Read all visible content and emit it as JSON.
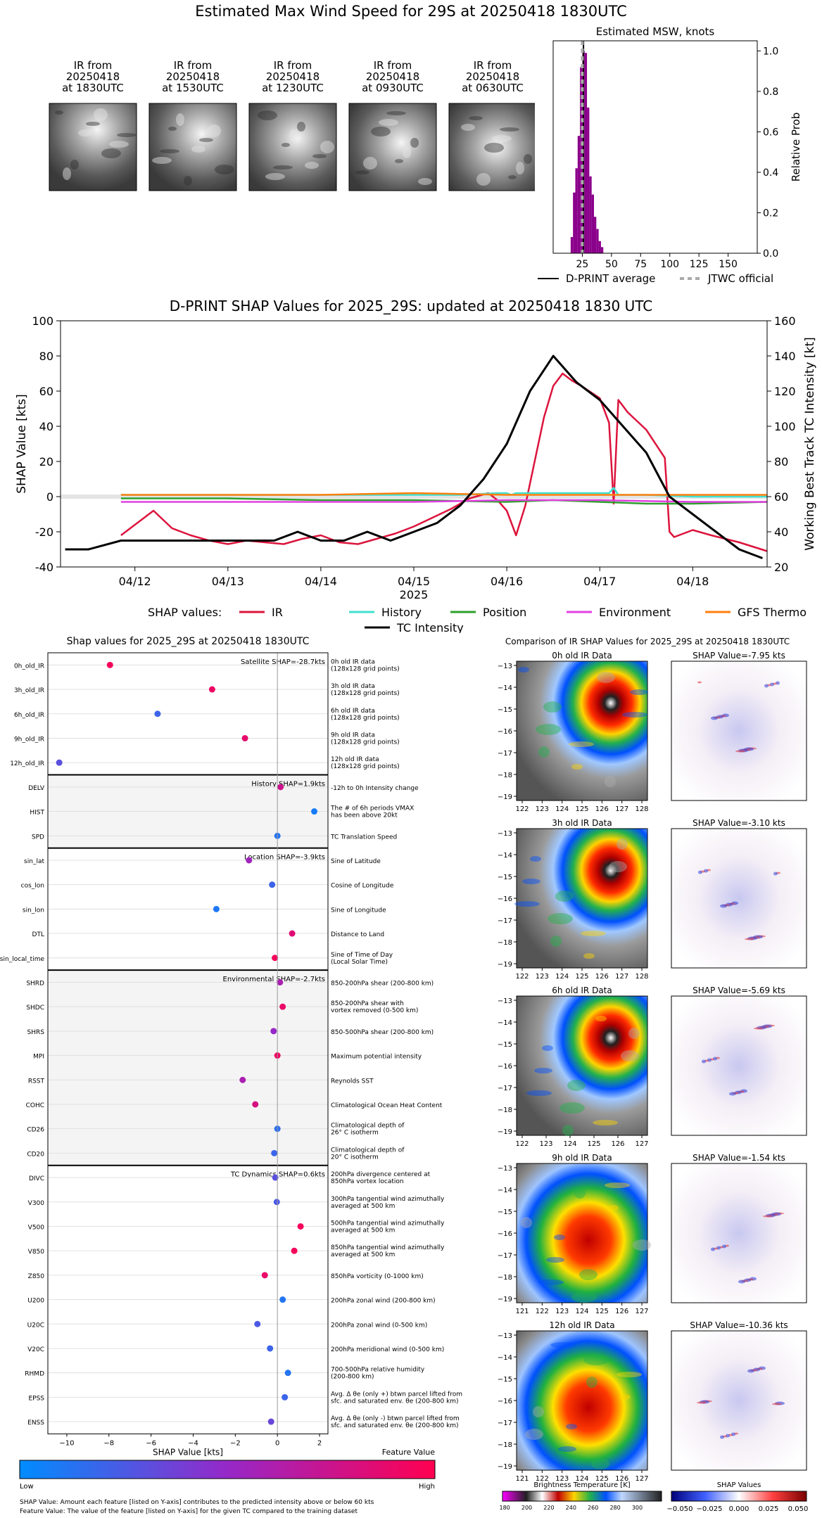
{
  "page_title": "Estimated Max Wind Speed for 29S at 20250418 1830UTC",
  "ir_panels": [
    {
      "label": "IR from\n20250418\nat 1830UTC"
    },
    {
      "label": "IR from\n20250418\nat 1530UTC"
    },
    {
      "label": "IR from\n20250418\nat 1230UTC"
    },
    {
      "label": "IR from\n20250418\nat 0930UTC"
    },
    {
      "label": "IR from\n20250418\nat 0630UTC"
    }
  ],
  "colors": {
    "ir": "#dc143c",
    "history": "#40e0d0",
    "position": "#2ca02c",
    "environment": "#e040e0",
    "gfs": "#ff7f0e",
    "intensity": "#000000",
    "hist_bar": "#8b008b",
    "jtwc": "#aaaaaa"
  },
  "chart_data": [
    {
      "type": "bar",
      "title": "Estimated MSW, knots",
      "ylabel": "Relative Prob",
      "xlim": [
        0,
        175
      ],
      "ylim": [
        0,
        1.05
      ],
      "xticks": [
        25,
        50,
        75,
        100,
        125,
        150
      ],
      "yticks": [
        "0.0",
        "0.2",
        "0.4",
        "0.6",
        "0.8",
        "1.0"
      ],
      "bins": [
        15,
        17,
        19,
        21,
        23,
        25,
        27,
        29,
        31,
        33,
        35,
        37,
        39,
        41
      ],
      "values": [
        0.08,
        0.3,
        0.42,
        0.58,
        0.92,
        1.0,
        0.99,
        0.72,
        0.38,
        0.29,
        0.18,
        0.12,
        0.06,
        0.03
      ],
      "dprint_average": 26,
      "jtwc_official": 25,
      "legend": [
        {
          "name": "D-PRINT average"
        },
        {
          "name": "JTWC official"
        }
      ]
    },
    {
      "type": "line",
      "title": "D-PRINT SHAP Values for 2025_29S: updated at 20250418 1830 UTC",
      "xlabel": "2025",
      "ylabel": "SHAP Value [kts]",
      "y2label": "Working Best Track TC Intensity [kt]",
      "xlim": [
        11.2,
        18.8
      ],
      "ylim": [
        -40,
        100
      ],
      "y2lim": [
        20,
        160
      ],
      "xticks": [
        {
          "v": 12,
          "label": "04/12"
        },
        {
          "v": 13,
          "label": "04/13"
        },
        {
          "v": 14,
          "label": "04/14"
        },
        {
          "v": 15,
          "label": "04/15"
        },
        {
          "v": 16,
          "label": "04/16"
        },
        {
          "v": 17,
          "label": "04/17"
        },
        {
          "v": 18,
          "label": "04/18"
        }
      ],
      "yticks": [
        "-40",
        "-20",
        "0",
        "20",
        "40",
        "60",
        "80",
        "100"
      ],
      "y2ticks": [
        "20",
        "40",
        "60",
        "80",
        "100",
        "120",
        "140",
        "160"
      ],
      "legend_prefix": "SHAP values:",
      "series": [
        {
          "name": "IR",
          "color_key": "ir",
          "x": [
            11.85,
            12.0,
            12.2,
            12.4,
            12.6,
            12.8,
            13.0,
            13.2,
            13.4,
            13.6,
            13.8,
            14.0,
            14.2,
            14.4,
            14.6,
            14.8,
            15.0,
            15.2,
            15.4,
            15.6,
            15.8,
            15.9,
            16.0,
            16.1,
            16.2,
            16.3,
            16.4,
            16.5,
            16.6,
            16.7,
            16.8,
            17.0,
            17.1,
            17.15,
            17.2,
            17.3,
            17.5,
            17.7,
            17.75,
            17.8,
            18.0,
            18.2,
            18.5,
            18.8
          ],
          "y": [
            -22,
            -16,
            -8,
            -18,
            -22,
            -25,
            -27,
            -25,
            -26,
            -27,
            -24,
            -22,
            -26,
            -27,
            -24,
            -21,
            -17,
            -12,
            -7,
            -1,
            2,
            -2,
            -8,
            -22,
            -5,
            20,
            45,
            63,
            70,
            66,
            63,
            56,
            42,
            -4,
            55,
            48,
            38,
            22,
            -20,
            -23,
            -19,
            -22,
            -26,
            -31
          ]
        },
        {
          "name": "History",
          "color_key": "history",
          "x": [
            11.85,
            13,
            14,
            15,
            15.5,
            15.9,
            16,
            16.05,
            16.1,
            16.6,
            17.1,
            17.15,
            17.2,
            17.5,
            18,
            18.8
          ],
          "y": [
            1,
            1,
            1,
            1,
            1,
            2,
            2,
            1,
            2,
            2,
            2,
            5,
            1,
            1,
            0,
            0
          ]
        },
        {
          "name": "Position",
          "color_key": "position",
          "x": [
            11.85,
            13,
            14,
            15,
            16,
            16.5,
            17,
            17.5,
            18,
            18.8
          ],
          "y": [
            -1,
            -1,
            -2,
            -2,
            -3,
            -2,
            -3,
            -4,
            -4,
            -3
          ]
        },
        {
          "name": "Environment",
          "color_key": "environment",
          "x": [
            11.85,
            13,
            14,
            15,
            16,
            17,
            18,
            18.8
          ],
          "y": [
            -3,
            -3,
            -3,
            -3,
            -2,
            -2,
            -3,
            -3
          ]
        },
        {
          "name": "GFS Thermo",
          "color_key": "gfs",
          "x": [
            11.85,
            13,
            14,
            15,
            16,
            17,
            18,
            18.8
          ],
          "y": [
            1,
            1,
            1,
            2,
            1,
            1,
            1,
            1
          ]
        },
        {
          "name": "TC Intensity",
          "color_key": "intensity",
          "axis": "right",
          "x": [
            11.25,
            11.5,
            11.85,
            12.5,
            13.0,
            13.5,
            13.75,
            14.0,
            14.25,
            14.5,
            14.75,
            15.0,
            15.25,
            15.5,
            15.75,
            16.0,
            16.25,
            16.5,
            16.75,
            17.0,
            17.25,
            17.5,
            17.75,
            18.0,
            18.25,
            18.5,
            18.75
          ],
          "y": [
            30,
            30,
            35,
            35,
            35,
            35,
            40,
            35,
            35,
            40,
            35,
            40,
            45,
            55,
            70,
            90,
            120,
            140,
            125,
            115,
            100,
            85,
            60,
            50,
            40,
            30,
            25
          ]
        }
      ]
    },
    {
      "type": "scatter",
      "title": "Shap values for 2025_29S at 20250418 1830UTC",
      "xlabel": "SHAP Value [kts]",
      "xlim": [
        -10.9,
        2.4
      ],
      "xticks": [
        -10,
        -8,
        -6,
        -4,
        -2,
        0,
        2
      ],
      "colorbar": {
        "title": "Feature Value",
        "low": "Low",
        "high": "High"
      },
      "groups": [
        {
          "label": "Satellite SHAP=-28.7kts",
          "shaded": false,
          "items": [
            {
              "name": "0h_old_IR",
              "desc": "0h old IR data\n(128x128 grid points)",
              "value": -7.95,
              "fv": 0.95
            },
            {
              "name": "3h_old_IR",
              "desc": "3h old IR data\n(128x128 grid points)",
              "value": -3.1,
              "fv": 0.92
            },
            {
              "name": "6h_old_IR",
              "desc": "6h old IR data\n(128x128 grid points)",
              "value": -5.69,
              "fv": 0.2
            },
            {
              "name": "9h_old_IR",
              "desc": "9h old IR data\n(128x128 grid points)",
              "value": -1.54,
              "fv": 0.88
            },
            {
              "name": "12h_old_IR",
              "desc": "12h old IR data\n(128x128 grid points)",
              "value": -10.36,
              "fv": 0.3
            }
          ]
        },
        {
          "label": "History SHAP=1.9kts",
          "shaded": true,
          "items": [
            {
              "name": "DELV",
              "desc": "-12h to 0h Intensity change",
              "value": 0.15,
              "fv": 0.75
            },
            {
              "name": "HIST",
              "desc": "The # of 6h periods VMAX\nhas been above 20kt",
              "value": 1.75,
              "fv": 0.08
            },
            {
              "name": "SPD",
              "desc": "TC Translation Speed",
              "value": 0.0,
              "fv": 0.12
            }
          ]
        },
        {
          "label": "Location SHAP=-3.9kts",
          "shaded": false,
          "items": [
            {
              "name": "sin_lat",
              "desc": "Sine of Latitude",
              "value": -1.35,
              "fv": 0.55
            },
            {
              "name": "cos_lon",
              "desc": "Cosine of Longitude",
              "value": -0.25,
              "fv": 0.2
            },
            {
              "name": "sin_lon",
              "desc": "Sine of Longitude",
              "value": -2.9,
              "fv": 0.1
            },
            {
              "name": "DTL",
              "desc": "Distance to Land",
              "value": 0.7,
              "fv": 0.85
            },
            {
              "name": "sin_local_time",
              "desc": "Sine of Time of Day\n(Local Solar Time)",
              "value": -0.12,
              "fv": 0.95
            }
          ]
        },
        {
          "label": "Environmental SHAP=-2.7kts",
          "shaded": true,
          "items": [
            {
              "name": "SHRD",
              "desc": "850-200hPa shear (200-800 km)",
              "value": 0.12,
              "fv": 0.6
            },
            {
              "name": "SHDC",
              "desc": "850-200hPa shear with\nvortex removed (0-500 km)",
              "value": 0.25,
              "fv": 0.9
            },
            {
              "name": "SHRS",
              "desc": "850-500hPa shear (200-800 km)",
              "value": -0.18,
              "fv": 0.5
            },
            {
              "name": "MPI",
              "desc": "Maximum potential intensity",
              "value": 0.0,
              "fv": 0.92
            },
            {
              "name": "RSST",
              "desc": "Reynolds SST",
              "value": -1.65,
              "fv": 0.6
            },
            {
              "name": "COHC",
              "desc": "Climatological Ocean Heat Content",
              "value": -1.05,
              "fv": 0.8
            },
            {
              "name": "CD26",
              "desc": "Climatological depth of\n26° C isotherm",
              "value": 0.0,
              "fv": 0.15
            },
            {
              "name": "CD20",
              "desc": "Climatological depth of\n20° C isotherm",
              "value": -0.15,
              "fv": 0.2
            }
          ]
        },
        {
          "label": "TC Dynamics SHAP=0.6kts",
          "shaded": false,
          "items": [
            {
              "name": "DIVC",
              "desc": "200hPa divergence centered at\n850hPa vortex location",
              "value": -0.1,
              "fv": 0.3
            },
            {
              "name": "V300",
              "desc": "300hPa tangential wind azimuthally\naveraged at 500 km",
              "value": -0.03,
              "fv": 0.25
            },
            {
              "name": "V500",
              "desc": "500hPa tangential wind azimuthally\naveraged at 500 km",
              "value": 1.1,
              "fv": 0.95
            },
            {
              "name": "V850",
              "desc": "850hPa tangential wind azimuthally\naveraged at 500 km",
              "value": 0.8,
              "fv": 0.95
            },
            {
              "name": "Z850",
              "desc": "850hPa vorticity (0-1000 km)",
              "value": -0.6,
              "fv": 0.9
            },
            {
              "name": "U200",
              "desc": "200hPa zonal wind (200-800 km)",
              "value": 0.25,
              "fv": 0.12
            },
            {
              "name": "U20C",
              "desc": "200hPa zonal wind (0-500 km)",
              "value": -0.95,
              "fv": 0.25
            },
            {
              "name": "V20C",
              "desc": "200hPa meridional wind (0-500 km)",
              "value": -0.35,
              "fv": 0.2
            },
            {
              "name": "RHMD",
              "desc": "700-500hPa relative humidity\n(200-800 km)",
              "value": 0.5,
              "fv": 0.12
            },
            {
              "name": "EPSS",
              "desc": "Avg. Δ θe (only +) btwn parcel lifted from\nsfc. and saturated env. θe (200-800 km)",
              "value": 0.35,
              "fv": 0.2
            },
            {
              "name": "ENSS",
              "desc": "Avg. Δ θe (only -) btwn parcel lifted from\nsfc. and saturated env. θe (200-800 km)",
              "value": -0.3,
              "fv": 0.35
            }
          ]
        }
      ],
      "notes": [
        "SHAP Value: Amount each feature [listed on Y-axis] contributes to the predicted intensity above or below 60 kts",
        "Feature Value: The value of the feature [listed on Y-axis] for the given TC compared to the training dataset"
      ]
    },
    {
      "type": "heatmap",
      "title": "Comparison of IR SHAP Values for 2025_29S at 20250418 1830UTC",
      "rows": [
        {
          "ir_title": "0h old IR Data",
          "shap_title": "SHAP Value=-7.95 kts",
          "xticks": [
            "122",
            "123",
            "124",
            "125",
            "126",
            "127",
            "128"
          ]
        },
        {
          "ir_title": "3h old IR Data",
          "shap_title": "SHAP Value=-3.10 kts",
          "xticks": [
            "122",
            "123",
            "124",
            "125",
            "126",
            "127",
            "128"
          ]
        },
        {
          "ir_title": "6h old IR Data",
          "shap_title": "SHAP Value=-5.69 kts",
          "xticks": [
            "122",
            "123",
            "124",
            "125",
            "126",
            "127"
          ]
        },
        {
          "ir_title": "9h old IR Data",
          "shap_title": "SHAP Value=-1.54 kts",
          "xticks": [
            "121",
            "122",
            "123",
            "124",
            "125",
            "126",
            "127"
          ]
        },
        {
          "ir_title": "12h old IR Data",
          "shap_title": "SHAP Value=-10.36 kts",
          "xticks": [
            "121",
            "122",
            "123",
            "124",
            "125",
            "126",
            "127"
          ]
        }
      ],
      "yticks": [
        "-13",
        "-14",
        "-15",
        "-16",
        "-17",
        "-18",
        "-19"
      ],
      "bt_colorbar": {
        "title": "Brightness Temperature [K]",
        "ticks": [
          "180",
          "200",
          "220",
          "240",
          "260",
          "280",
          "300"
        ]
      },
      "shap_colorbar": {
        "title": "SHAP Values",
        "ticks": [
          "−0.050",
          "−0.025",
          "0.000",
          "0.025",
          "0.050"
        ]
      }
    }
  ]
}
